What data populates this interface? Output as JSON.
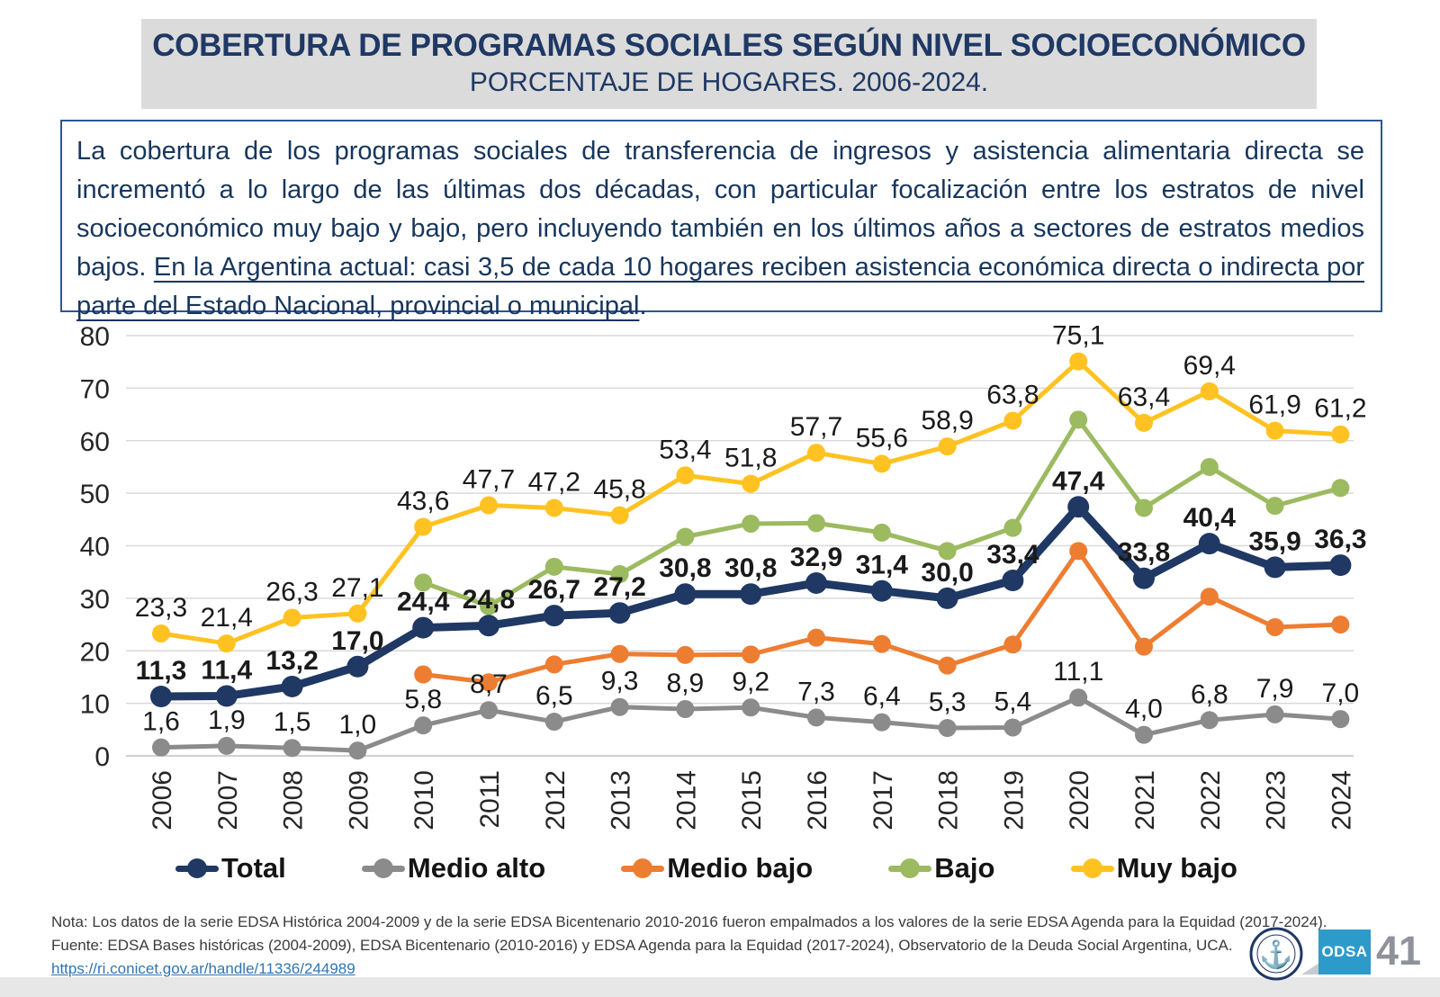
{
  "header": {
    "title": "COBERTURA DE PROGRAMAS SOCIALES SEGÚN NIVEL SOCIOECONÓMICO",
    "subtitle": "PORCENTAJE DE HOGARES. 2006-2024."
  },
  "summary": {
    "lead": "La cobertura de los programas sociales de transferencia de ingresos y asistencia alimentaria directa se incrementó a lo largo de las últimas dos décadas, con particular focalización entre los estratos de nivel socioeconómico muy bajo y bajo, pero incluyendo también en los últimos años a sectores de estratos medios bajos. ",
    "highlight": "En la Argentina actual: casi 3,5 de cada 10 hogares reciben asistencia económica directa o indirecta por parte del Estado Nacional, provincial o municipal",
    "tail": "."
  },
  "chart_data": {
    "type": "line",
    "categories": [
      "2006",
      "2007",
      "2008",
      "2009",
      "2010",
      "2011",
      "2012",
      "2013",
      "2014",
      "2015",
      "2016",
      "2017",
      "2018",
      "2019",
      "2020",
      "2021",
      "2022",
      "2023",
      "2024"
    ],
    "series": [
      {
        "name": "Total",
        "color": "#1F3864",
        "labels_shown": true,
        "labels_bold": true,
        "values": [
          11.3,
          11.4,
          13.2,
          17.0,
          24.4,
          24.8,
          26.7,
          27.2,
          30.8,
          30.8,
          32.9,
          31.4,
          30.0,
          33.4,
          47.4,
          33.8,
          40.4,
          35.9,
          36.3
        ]
      },
      {
        "name": "Medio alto",
        "color": "#8B8B8B",
        "labels_shown": true,
        "labels_bold": false,
        "values": [
          1.6,
          1.9,
          1.5,
          1.0,
          5.8,
          8.7,
          6.5,
          9.3,
          8.9,
          9.2,
          7.3,
          6.4,
          5.3,
          5.4,
          11.1,
          4.0,
          6.8,
          7.9,
          7.0
        ]
      },
      {
        "name": "Medio bajo",
        "color": "#ED7D31",
        "labels_shown": false,
        "labels_bold": false,
        "values": [
          null,
          null,
          null,
          null,
          15.5,
          14.0,
          17.4,
          19.4,
          19.2,
          19.3,
          22.5,
          21.3,
          17.2,
          21.2,
          39.0,
          20.8,
          30.3,
          24.5,
          25.0
        ]
      },
      {
        "name": "Bajo",
        "color": "#9CBA5F",
        "labels_shown": false,
        "labels_bold": false,
        "values": [
          null,
          null,
          null,
          null,
          33.0,
          28.5,
          36.0,
          34.6,
          41.7,
          44.2,
          44.3,
          42.5,
          39.0,
          43.4,
          64.0,
          47.2,
          55.0,
          47.6,
          51.0
        ]
      },
      {
        "name": "Muy bajo",
        "color": "#FFC221",
        "labels_shown": true,
        "labels_bold": false,
        "values": [
          23.3,
          21.4,
          26.3,
          27.1,
          43.6,
          47.7,
          47.2,
          45.8,
          53.4,
          51.8,
          57.7,
          55.6,
          58.9,
          63.8,
          75.1,
          63.4,
          69.4,
          61.9,
          61.2
        ]
      }
    ],
    "ylim": [
      0,
      80
    ],
    "ytick_step": 10,
    "grid": true,
    "legend_position": "bottom",
    "decimal_separator": ",",
    "title": "",
    "xlabel": "",
    "ylabel": ""
  },
  "footer": {
    "note": "Nota: Los datos de la serie EDSA Histórica 2004-2009 y de la serie EDSA Bicentenario 2010-2016 fueron empalmados a los valores de la serie EDSA Agenda para la Equidad (2017-2024).",
    "source": "Fuente: EDSA Bases históricas (2004-2009), EDSA Bicentenario (2010-2016) y EDSA Agenda para la Equidad (2017-2024), Observatorio de la Deuda Social Argentina, UCA.",
    "link": "https://ri.conicet.gov.ar/handle/11336/244989"
  },
  "branding": {
    "odsa_label": "ODSA",
    "page_number": "41"
  },
  "colors": {
    "title_navy": "#1F3864",
    "band_gray": "#DBDBDB",
    "box_border_blue": "#2F5597",
    "link_blue": "#2E75B6",
    "odsa_blue": "#2D9BC9",
    "page_number_gray": "#8E9399",
    "gridline": "#D9D9D9"
  }
}
